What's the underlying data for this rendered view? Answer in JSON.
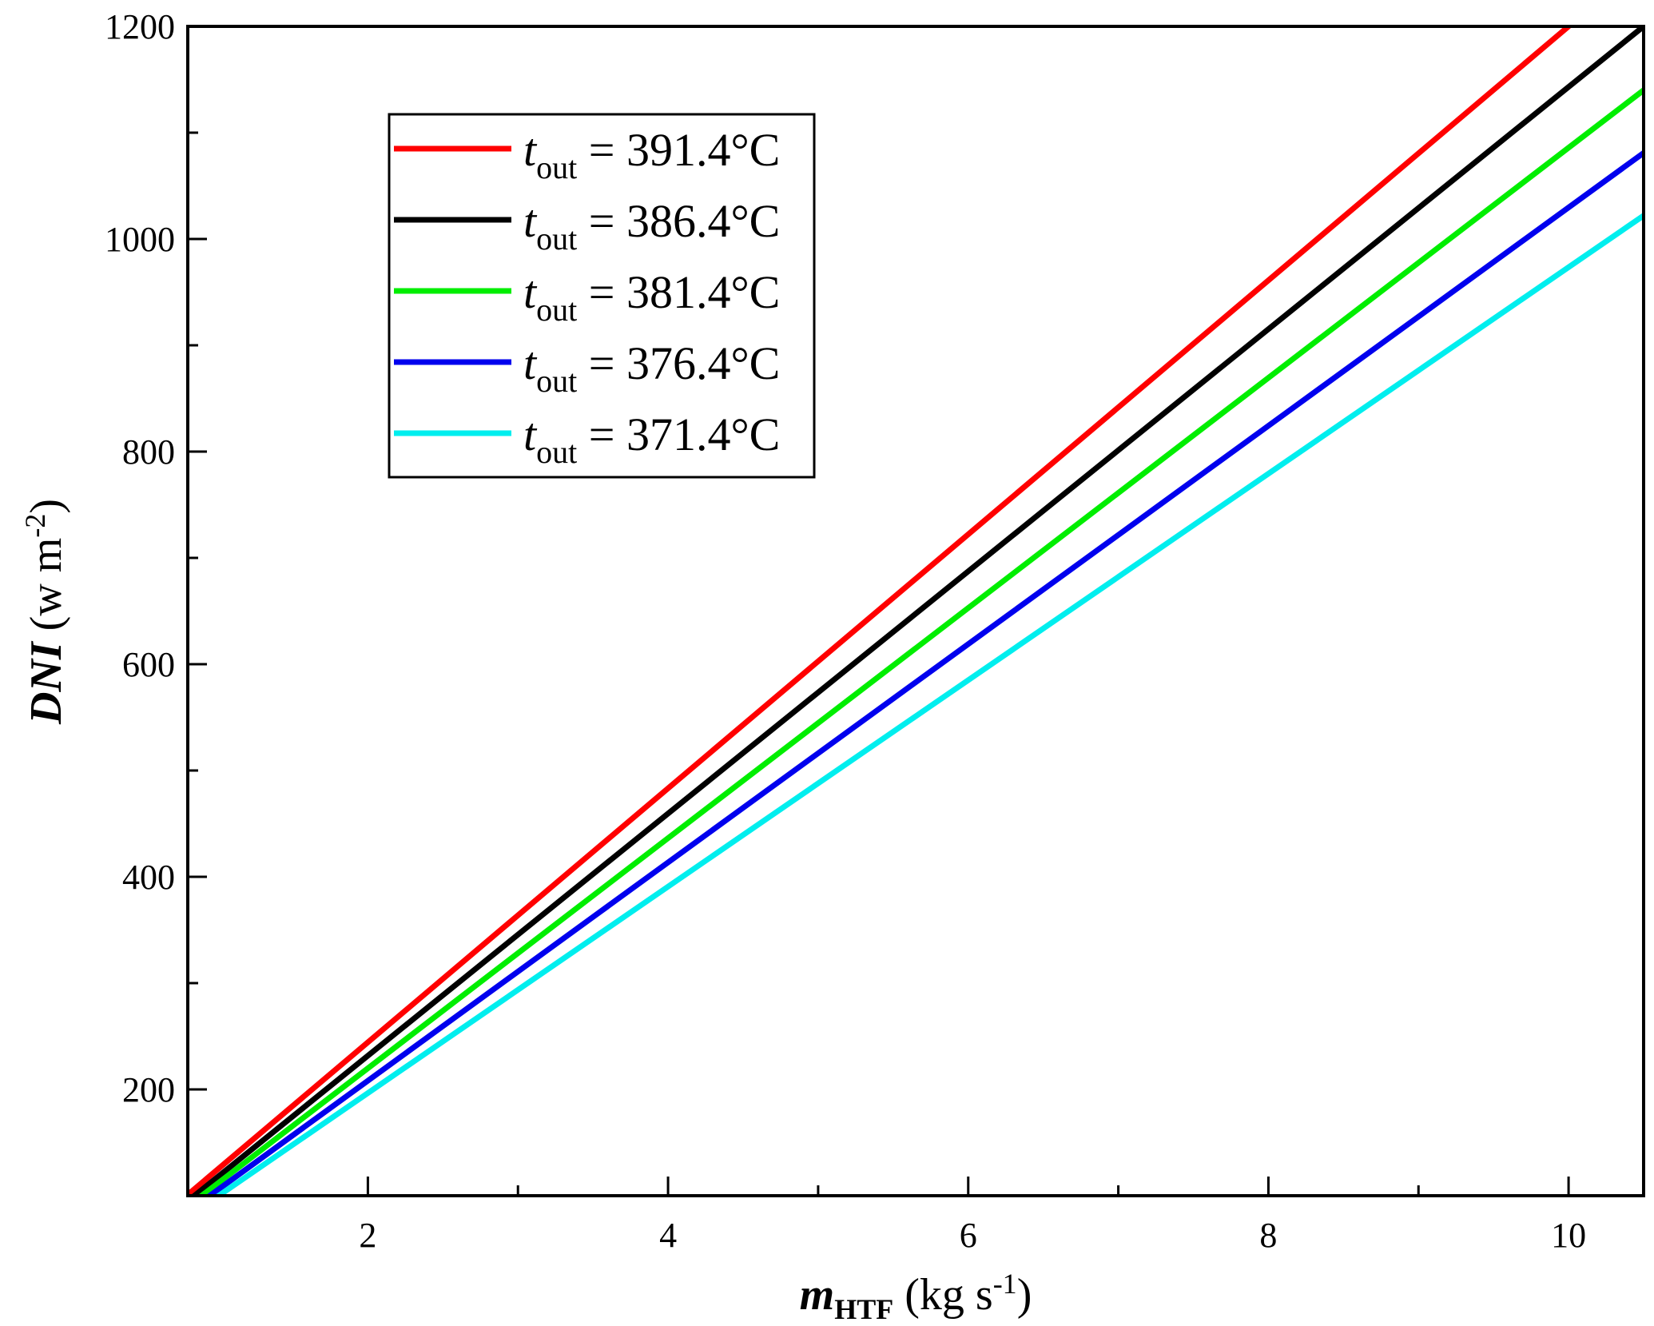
{
  "chart_data": {
    "type": "line",
    "xlim": [
      0.8,
      10.5
    ],
    "ylim": [
      100,
      1200
    ],
    "x_ticks": [
      "2",
      "4",
      "6",
      "8",
      "10"
    ],
    "x_tick_values": [
      2,
      4,
      6,
      8,
      10
    ],
    "x_minor_values": [
      3,
      5,
      7,
      9
    ],
    "y_ticks": [
      "200",
      "400",
      "600",
      "800",
      "1000",
      "1200"
    ],
    "y_tick_values": [
      200,
      400,
      600,
      800,
      1000,
      1200
    ],
    "y_minor_values": [
      300,
      500,
      700,
      900,
      1100
    ],
    "xlabel": {
      "main": "m",
      "sub": "HTF",
      "unit_pre": " (kg s",
      "unit_sup": "-1",
      "unit_post": ")"
    },
    "ylabel": {
      "main": "DNI",
      "unit_pre": " (w m",
      "unit_sup": "-2",
      "unit_post": ")"
    },
    "legend_position": "top-left",
    "grid": false,
    "series": [
      {
        "name_var": "t",
        "name_sub": "out",
        "name_rest": " = 391.4°C",
        "color": "#ff0000",
        "x": [
          0.8,
          10.0
        ],
        "y": [
          101,
          1200
        ]
      },
      {
        "name_var": "t",
        "name_sub": "out",
        "name_rest": " = 386.4°C",
        "color": "#000000",
        "x": [
          0.8,
          10.5
        ],
        "y": [
          95,
          1200
        ]
      },
      {
        "name_var": "t",
        "name_sub": "out",
        "name_rest": " = 381.4°C",
        "color": "#00ee00",
        "x": [
          0.8,
          10.5
        ],
        "y": [
          90,
          1140
        ]
      },
      {
        "name_var": "t",
        "name_sub": "out",
        "name_rest": " = 376.4°C",
        "color": "#0000ee",
        "x": [
          0.8,
          10.5
        ],
        "y": [
          85,
          1081
        ]
      },
      {
        "name_var": "t",
        "name_sub": "out",
        "name_rest": " = 371.4°C",
        "color": "#00eeee",
        "x": [
          0.8,
          10.5
        ],
        "y": [
          80,
          1022
        ]
      }
    ]
  }
}
